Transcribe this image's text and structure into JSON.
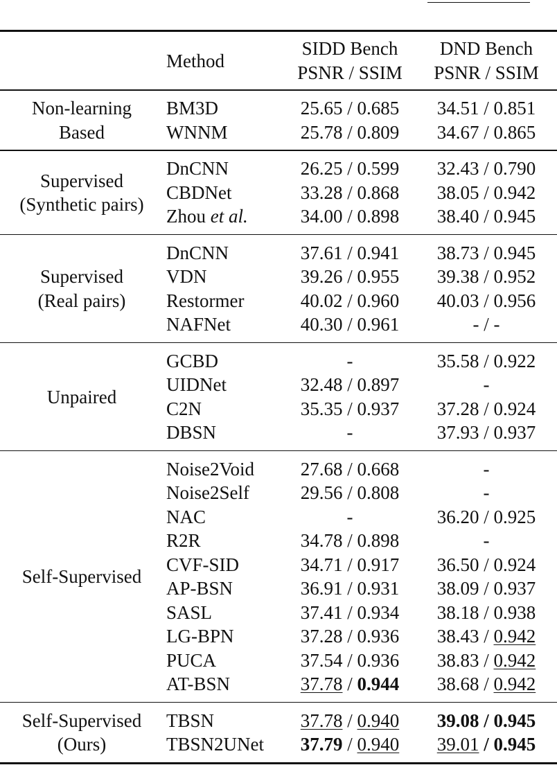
{
  "table": {
    "header": {
      "method": "Method",
      "sidd": [
        "SIDD Bench",
        "PSNR / SSIM"
      ],
      "dnd": [
        "DND Bench",
        "PSNR / SSIM"
      ]
    },
    "groups": [
      {
        "label": [
          "Non-learning",
          "Based"
        ],
        "rows": [
          {
            "method": "BM3D",
            "sidd": "25.65 / 0.685",
            "dnd": "34.51 / 0.851"
          },
          {
            "method": "WNNM",
            "sidd": "25.78 / 0.809",
            "dnd": "34.67 / 0.865"
          }
        ]
      },
      {
        "label": [
          "Supervised",
          "(Synthetic pairs)"
        ],
        "rows": [
          {
            "method": "DnCNN",
            "sidd": "26.25 / 0.599",
            "dnd": "32.43 / 0.790"
          },
          {
            "method": "CBDNet",
            "sidd": "33.28 / 0.868",
            "dnd": "38.05 / 0.942"
          },
          {
            "method": [
              {
                "text": "Zhou "
              },
              {
                "text": "et al.",
                "i": true
              }
            ],
            "sidd": "34.00 / 0.898",
            "dnd": "38.40 / 0.945"
          }
        ]
      },
      {
        "label": [
          "Supervised",
          "(Real pairs)"
        ],
        "rows": [
          {
            "method": "DnCNN",
            "sidd": "37.61 / 0.941",
            "dnd": "38.73 / 0.945"
          },
          {
            "method": "VDN",
            "sidd": "39.26 / 0.955",
            "dnd": "39.38 / 0.952"
          },
          {
            "method": "Restormer",
            "sidd": "40.02 / 0.960",
            "dnd": "40.03 / 0.956"
          },
          {
            "method": "NAFNet",
            "sidd": "40.30 / 0.961",
            "dnd": "- / -"
          }
        ]
      },
      {
        "label": [
          "Unpaired"
        ],
        "rows": [
          {
            "method": "GCBD",
            "sidd": "-",
            "dnd": "35.58 / 0.922"
          },
          {
            "method": "UIDNet",
            "sidd": "32.48 / 0.897",
            "dnd": "-"
          },
          {
            "method": "C2N",
            "sidd": "35.35 / 0.937",
            "dnd": "37.28 / 0.924"
          },
          {
            "method": "DBSN",
            "sidd": "-",
            "dnd": "37.93 / 0.937"
          }
        ]
      },
      {
        "label": [
          "Self-Supervised"
        ],
        "rows": [
          {
            "method": "Noise2Void",
            "sidd": "27.68 / 0.668",
            "dnd": "-"
          },
          {
            "method": "Noise2Self",
            "sidd": "29.56 / 0.808",
            "dnd": "-"
          },
          {
            "method": "NAC",
            "sidd": "-",
            "dnd": "36.20 / 0.925"
          },
          {
            "method": "R2R",
            "sidd": "34.78 / 0.898",
            "dnd": "-"
          },
          {
            "method": "CVF-SID",
            "sidd": "34.71 / 0.917",
            "dnd": "36.50 / 0.924"
          },
          {
            "method": "AP-BSN",
            "sidd": "36.91 / 0.931",
            "dnd": "38.09 / 0.937"
          },
          {
            "method": "SASL",
            "sidd": "37.41 / 0.934",
            "dnd": "38.18 / 0.938"
          },
          {
            "method": "LG-BPN",
            "sidd": "37.28 / 0.936",
            "dnd": [
              {
                "text": "38.43 / "
              },
              {
                "text": "0.942",
                "u": true
              }
            ]
          },
          {
            "method": "PUCA",
            "sidd": "37.54 / 0.936",
            "dnd": [
              {
                "text": "38.83 / "
              },
              {
                "text": "0.942",
                "u": true
              }
            ]
          },
          {
            "method": "AT-BSN",
            "sidd": [
              {
                "text": "37.78",
                "u": true
              },
              {
                "text": " / "
              },
              {
                "text": "0.944",
                "b": true
              }
            ],
            "dnd": [
              {
                "text": "38.68 / "
              },
              {
                "text": "0.942",
                "u": true
              }
            ]
          }
        ]
      },
      {
        "label": [
          "Self-Supervised",
          "(Ours)"
        ],
        "rows": [
          {
            "method": "TBSN",
            "sidd": [
              {
                "text": "37.78",
                "u": true
              },
              {
                "text": " / "
              },
              {
                "text": "0.940",
                "u": true
              }
            ],
            "dnd": [
              {
                "text": "39.08",
                "b": true
              },
              {
                "text": " / ",
                "b": true
              },
              {
                "text": "0.945",
                "b": true
              }
            ]
          },
          {
            "method": "TBSN2UNet",
            "sidd": [
              {
                "text": "37.79",
                "b": true
              },
              {
                "text": " / "
              },
              {
                "text": "0.940",
                "u": true
              }
            ],
            "dnd": [
              {
                "text": "39.01",
                "u": true
              },
              {
                "text": " / ",
                "b": true
              },
              {
                "text": "0.945",
                "b": true
              }
            ]
          }
        ]
      }
    ]
  }
}
